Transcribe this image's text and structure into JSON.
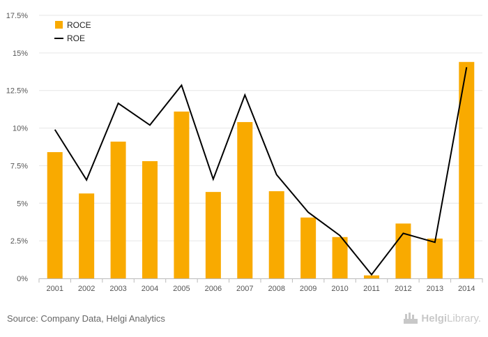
{
  "chart_data": {
    "type": "bar",
    "categories": [
      "2001",
      "2002",
      "2003",
      "2004",
      "2005",
      "2006",
      "2007",
      "2008",
      "2009",
      "2010",
      "2011",
      "2012",
      "2013",
      "2014"
    ],
    "series": [
      {
        "name": "ROCE",
        "type": "bar",
        "color": "#f9aa00",
        "values": [
          8.4,
          5.65,
          9.1,
          7.8,
          11.1,
          5.75,
          10.4,
          5.8,
          4.05,
          2.75,
          0.2,
          3.65,
          2.65,
          14.4
        ]
      },
      {
        "name": "ROE",
        "type": "line",
        "color": "#000000",
        "values": [
          9.9,
          6.55,
          11.65,
          10.2,
          12.85,
          6.6,
          12.2,
          6.9,
          4.4,
          2.85,
          0.25,
          3.0,
          2.4,
          14.05
        ]
      }
    ],
    "yticks": [
      "0%",
      "2.5%",
      "5%",
      "7.5%",
      "10%",
      "12.5%",
      "15%",
      "17.5%"
    ],
    "ylim": [
      0,
      17.5
    ],
    "grid": true,
    "legend": "top-left"
  },
  "footer": {
    "source": "Source: Company Data, Helgi Analytics",
    "brand_bold": "Helgi",
    "brand_rest": "Library."
  }
}
